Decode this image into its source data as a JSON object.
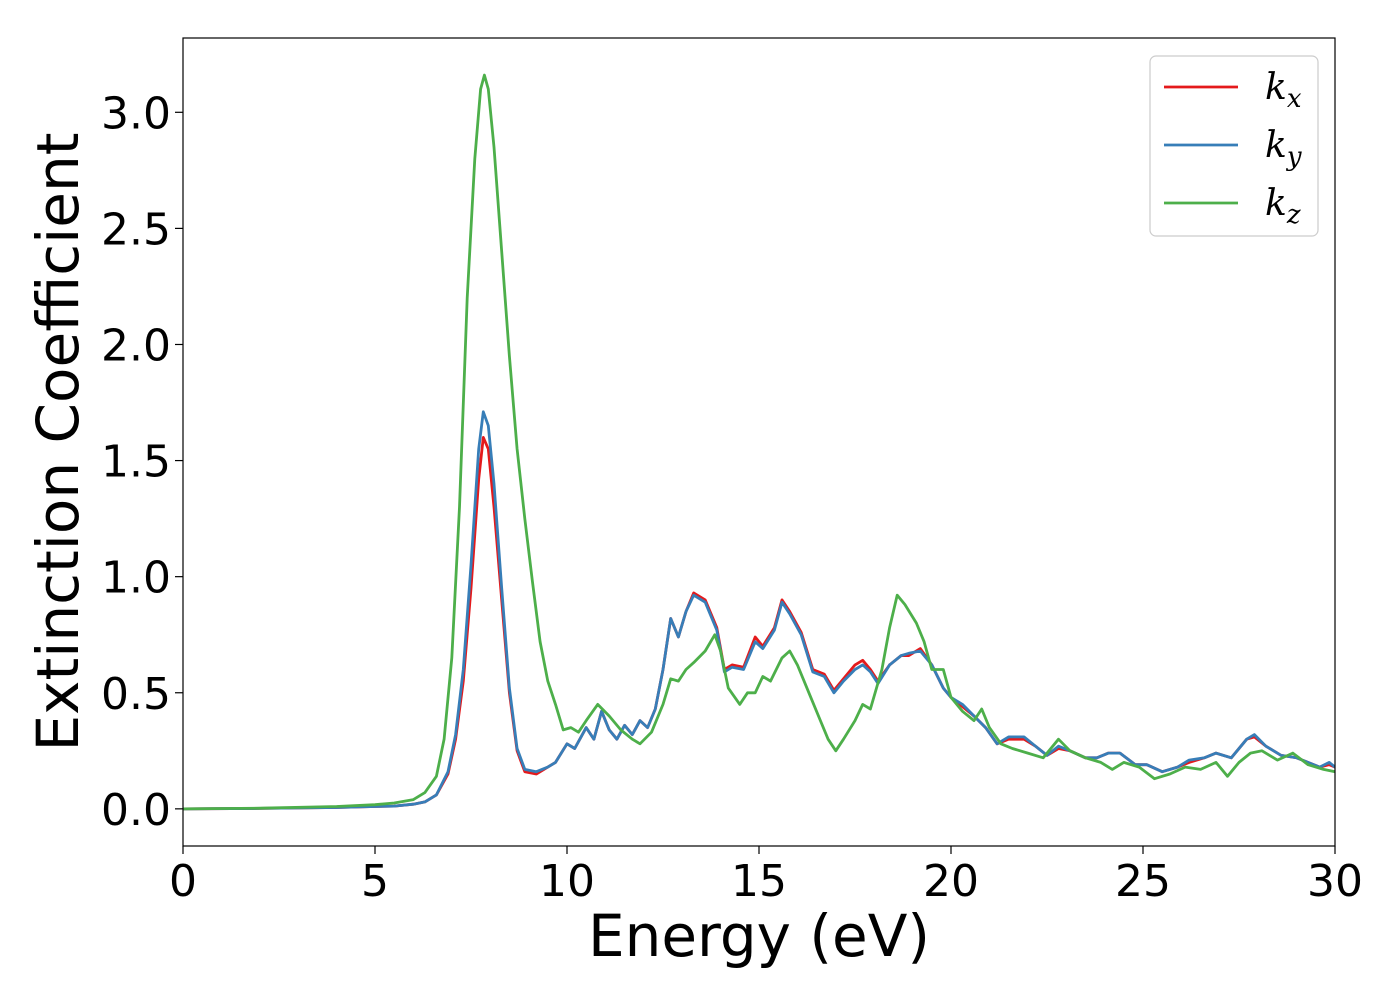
{
  "chart_data": {
    "type": "line",
    "xlabel": "Energy (eV)",
    "ylabel": "Extinction Coefficient",
    "xlim": [
      0,
      30
    ],
    "ylim": [
      -0.16,
      3.32
    ],
    "xticks": [
      0,
      5,
      10,
      15,
      20,
      25,
      30
    ],
    "xtick_labels": [
      "0",
      "5",
      "10",
      "15",
      "20",
      "25",
      "30"
    ],
    "yticks": [
      0.0,
      0.5,
      1.0,
      1.5,
      2.0,
      2.5,
      3.0
    ],
    "ytick_labels": [
      "0.0",
      "0.5",
      "1.0",
      "1.5",
      "2.0",
      "2.5",
      "3.0"
    ],
    "grid": false,
    "legend_position": "top-right",
    "series": [
      {
        "name": "k",
        "subscript": "x",
        "color": "#e41a1c",
        "points": [
          [
            0,
            0.0
          ],
          [
            2,
            0.002
          ],
          [
            4,
            0.006
          ],
          [
            5,
            0.01
          ],
          [
            5.5,
            0.012
          ],
          [
            6,
            0.02
          ],
          [
            6.3,
            0.03
          ],
          [
            6.6,
            0.06
          ],
          [
            6.9,
            0.15
          ],
          [
            7.1,
            0.3
          ],
          [
            7.3,
            0.55
          ],
          [
            7.5,
            0.95
          ],
          [
            7.7,
            1.42
          ],
          [
            7.82,
            1.6
          ],
          [
            7.95,
            1.55
          ],
          [
            8.1,
            1.3
          ],
          [
            8.3,
            0.9
          ],
          [
            8.5,
            0.5
          ],
          [
            8.7,
            0.25
          ],
          [
            8.9,
            0.16
          ],
          [
            9.2,
            0.15
          ],
          [
            9.5,
            0.18
          ],
          [
            9.7,
            0.2
          ],
          [
            10,
            0.28
          ],
          [
            10.2,
            0.26
          ],
          [
            10.5,
            0.35
          ],
          [
            10.7,
            0.3
          ],
          [
            10.9,
            0.42
          ],
          [
            11.1,
            0.34
          ],
          [
            11.3,
            0.3
          ],
          [
            11.5,
            0.36
          ],
          [
            11.7,
            0.32
          ],
          [
            11.9,
            0.38
          ],
          [
            12.1,
            0.35
          ],
          [
            12.3,
            0.43
          ],
          [
            12.5,
            0.6
          ],
          [
            12.7,
            0.82
          ],
          [
            12.9,
            0.74
          ],
          [
            13.1,
            0.85
          ],
          [
            13.3,
            0.93
          ],
          [
            13.6,
            0.9
          ],
          [
            13.9,
            0.78
          ],
          [
            14.1,
            0.6
          ],
          [
            14.3,
            0.62
          ],
          [
            14.6,
            0.61
          ],
          [
            14.9,
            0.74
          ],
          [
            15.1,
            0.7
          ],
          [
            15.4,
            0.78
          ],
          [
            15.6,
            0.9
          ],
          [
            15.8,
            0.85
          ],
          [
            16.1,
            0.76
          ],
          [
            16.4,
            0.6
          ],
          [
            16.7,
            0.58
          ],
          [
            16.95,
            0.51
          ],
          [
            17.2,
            0.56
          ],
          [
            17.5,
            0.62
          ],
          [
            17.7,
            0.64
          ],
          [
            17.9,
            0.6
          ],
          [
            18.1,
            0.55
          ],
          [
            18.4,
            0.62
          ],
          [
            18.7,
            0.66
          ],
          [
            18.9,
            0.66
          ],
          [
            19.2,
            0.69
          ],
          [
            19.5,
            0.62
          ],
          [
            19.8,
            0.52
          ],
          [
            20,
            0.48
          ],
          [
            20.3,
            0.44
          ],
          [
            20.6,
            0.4
          ],
          [
            20.9,
            0.35
          ],
          [
            21.2,
            0.28
          ],
          [
            21.5,
            0.3
          ],
          [
            21.9,
            0.3
          ],
          [
            22.2,
            0.27
          ],
          [
            22.5,
            0.23
          ],
          [
            22.8,
            0.26
          ],
          [
            23.1,
            0.25
          ],
          [
            23.5,
            0.22
          ],
          [
            23.8,
            0.22
          ],
          [
            24.1,
            0.24
          ],
          [
            24.4,
            0.24
          ],
          [
            24.8,
            0.19
          ],
          [
            25.1,
            0.19
          ],
          [
            25.5,
            0.16
          ],
          [
            25.9,
            0.18
          ],
          [
            26.2,
            0.2
          ],
          [
            26.6,
            0.22
          ],
          [
            26.9,
            0.24
          ],
          [
            27.3,
            0.22
          ],
          [
            27.7,
            0.3
          ],
          [
            27.9,
            0.31
          ],
          [
            28.2,
            0.27
          ],
          [
            28.6,
            0.23
          ],
          [
            29,
            0.22
          ],
          [
            29.3,
            0.2
          ],
          [
            29.6,
            0.18
          ],
          [
            29.85,
            0.19
          ],
          [
            30,
            0.18
          ]
        ]
      },
      {
        "name": "k",
        "subscript": "y",
        "color": "#377eb8",
        "points": [
          [
            0,
            0.0
          ],
          [
            2,
            0.002
          ],
          [
            4,
            0.006
          ],
          [
            5,
            0.01
          ],
          [
            5.5,
            0.012
          ],
          [
            6,
            0.02
          ],
          [
            6.3,
            0.03
          ],
          [
            6.6,
            0.06
          ],
          [
            6.9,
            0.16
          ],
          [
            7.1,
            0.32
          ],
          [
            7.3,
            0.6
          ],
          [
            7.5,
            1.05
          ],
          [
            7.7,
            1.55
          ],
          [
            7.82,
            1.71
          ],
          [
            7.95,
            1.65
          ],
          [
            8.1,
            1.4
          ],
          [
            8.3,
            0.95
          ],
          [
            8.5,
            0.52
          ],
          [
            8.7,
            0.26
          ],
          [
            8.9,
            0.17
          ],
          [
            9.2,
            0.16
          ],
          [
            9.5,
            0.18
          ],
          [
            9.7,
            0.2
          ],
          [
            10,
            0.28
          ],
          [
            10.2,
            0.26
          ],
          [
            10.5,
            0.35
          ],
          [
            10.7,
            0.3
          ],
          [
            10.9,
            0.42
          ],
          [
            11.1,
            0.34
          ],
          [
            11.3,
            0.3
          ],
          [
            11.5,
            0.36
          ],
          [
            11.7,
            0.32
          ],
          [
            11.9,
            0.38
          ],
          [
            12.1,
            0.35
          ],
          [
            12.3,
            0.43
          ],
          [
            12.5,
            0.6
          ],
          [
            12.7,
            0.82
          ],
          [
            12.9,
            0.74
          ],
          [
            13.1,
            0.85
          ],
          [
            13.3,
            0.92
          ],
          [
            13.6,
            0.89
          ],
          [
            13.9,
            0.77
          ],
          [
            14.1,
            0.59
          ],
          [
            14.3,
            0.61
          ],
          [
            14.6,
            0.6
          ],
          [
            14.9,
            0.72
          ],
          [
            15.1,
            0.69
          ],
          [
            15.4,
            0.77
          ],
          [
            15.6,
            0.89
          ],
          [
            15.8,
            0.84
          ],
          [
            16.1,
            0.75
          ],
          [
            16.4,
            0.59
          ],
          [
            16.7,
            0.57
          ],
          [
            16.95,
            0.5
          ],
          [
            17.2,
            0.55
          ],
          [
            17.5,
            0.6
          ],
          [
            17.7,
            0.62
          ],
          [
            17.9,
            0.59
          ],
          [
            18.1,
            0.54
          ],
          [
            18.4,
            0.62
          ],
          [
            18.7,
            0.66
          ],
          [
            18.9,
            0.67
          ],
          [
            19.2,
            0.68
          ],
          [
            19.5,
            0.62
          ],
          [
            19.8,
            0.52
          ],
          [
            20,
            0.48
          ],
          [
            20.3,
            0.45
          ],
          [
            20.6,
            0.4
          ],
          [
            20.9,
            0.35
          ],
          [
            21.2,
            0.28
          ],
          [
            21.5,
            0.31
          ],
          [
            21.9,
            0.31
          ],
          [
            22.2,
            0.27
          ],
          [
            22.5,
            0.23
          ],
          [
            22.8,
            0.27
          ],
          [
            23.1,
            0.25
          ],
          [
            23.5,
            0.22
          ],
          [
            23.8,
            0.22
          ],
          [
            24.1,
            0.24
          ],
          [
            24.4,
            0.24
          ],
          [
            24.8,
            0.19
          ],
          [
            25.1,
            0.19
          ],
          [
            25.5,
            0.16
          ],
          [
            25.9,
            0.18
          ],
          [
            26.2,
            0.21
          ],
          [
            26.6,
            0.22
          ],
          [
            26.9,
            0.24
          ],
          [
            27.3,
            0.22
          ],
          [
            27.7,
            0.3
          ],
          [
            27.9,
            0.32
          ],
          [
            28.2,
            0.27
          ],
          [
            28.6,
            0.23
          ],
          [
            29,
            0.22
          ],
          [
            29.3,
            0.2
          ],
          [
            29.6,
            0.18
          ],
          [
            29.85,
            0.2
          ],
          [
            30,
            0.18
          ]
        ]
      },
      {
        "name": "k",
        "subscript": "z",
        "color": "#4daf4a",
        "points": [
          [
            0,
            0.0
          ],
          [
            2,
            0.003
          ],
          [
            4,
            0.01
          ],
          [
            5,
            0.018
          ],
          [
            5.5,
            0.025
          ],
          [
            6,
            0.04
          ],
          [
            6.3,
            0.07
          ],
          [
            6.6,
            0.14
          ],
          [
            6.8,
            0.3
          ],
          [
            7,
            0.65
          ],
          [
            7.2,
            1.3
          ],
          [
            7.4,
            2.2
          ],
          [
            7.6,
            2.8
          ],
          [
            7.75,
            3.1
          ],
          [
            7.85,
            3.16
          ],
          [
            7.95,
            3.1
          ],
          [
            8.1,
            2.85
          ],
          [
            8.3,
            2.4
          ],
          [
            8.5,
            1.95
          ],
          [
            8.7,
            1.55
          ],
          [
            8.9,
            1.25
          ],
          [
            9.1,
            0.98
          ],
          [
            9.3,
            0.72
          ],
          [
            9.5,
            0.55
          ],
          [
            9.7,
            0.45
          ],
          [
            9.9,
            0.34
          ],
          [
            10.1,
            0.35
          ],
          [
            10.3,
            0.33
          ],
          [
            10.5,
            0.38
          ],
          [
            10.8,
            0.45
          ],
          [
            11.1,
            0.4
          ],
          [
            11.4,
            0.34
          ],
          [
            11.7,
            0.3
          ],
          [
            11.9,
            0.28
          ],
          [
            12.2,
            0.33
          ],
          [
            12.5,
            0.45
          ],
          [
            12.7,
            0.56
          ],
          [
            12.9,
            0.55
          ],
          [
            13.1,
            0.6
          ],
          [
            13.3,
            0.63
          ],
          [
            13.6,
            0.68
          ],
          [
            13.85,
            0.75
          ],
          [
            14.0,
            0.68
          ],
          [
            14.2,
            0.52
          ],
          [
            14.5,
            0.45
          ],
          [
            14.7,
            0.5
          ],
          [
            14.9,
            0.5
          ],
          [
            15.1,
            0.57
          ],
          [
            15.3,
            0.55
          ],
          [
            15.6,
            0.65
          ],
          [
            15.8,
            0.68
          ],
          [
            16.0,
            0.62
          ],
          [
            16.3,
            0.5
          ],
          [
            16.6,
            0.38
          ],
          [
            16.8,
            0.3
          ],
          [
            17.0,
            0.25
          ],
          [
            17.2,
            0.3
          ],
          [
            17.5,
            0.38
          ],
          [
            17.7,
            0.45
          ],
          [
            17.9,
            0.43
          ],
          [
            18.2,
            0.6
          ],
          [
            18.4,
            0.78
          ],
          [
            18.6,
            0.92
          ],
          [
            18.8,
            0.88
          ],
          [
            19.1,
            0.8
          ],
          [
            19.3,
            0.72
          ],
          [
            19.5,
            0.6
          ],
          [
            19.8,
            0.6
          ],
          [
            20.0,
            0.48
          ],
          [
            20.3,
            0.42
          ],
          [
            20.6,
            0.38
          ],
          [
            20.8,
            0.43
          ],
          [
            21.0,
            0.35
          ],
          [
            21.3,
            0.28
          ],
          [
            21.6,
            0.26
          ],
          [
            22.0,
            0.24
          ],
          [
            22.4,
            0.22
          ],
          [
            22.8,
            0.3
          ],
          [
            23.1,
            0.25
          ],
          [
            23.5,
            0.22
          ],
          [
            23.9,
            0.2
          ],
          [
            24.2,
            0.17
          ],
          [
            24.5,
            0.2
          ],
          [
            24.9,
            0.18
          ],
          [
            25.3,
            0.13
          ],
          [
            25.7,
            0.15
          ],
          [
            26.1,
            0.18
          ],
          [
            26.5,
            0.17
          ],
          [
            26.9,
            0.2
          ],
          [
            27.2,
            0.14
          ],
          [
            27.5,
            0.2
          ],
          [
            27.8,
            0.24
          ],
          [
            28.1,
            0.25
          ],
          [
            28.5,
            0.21
          ],
          [
            28.9,
            0.24
          ],
          [
            29.3,
            0.19
          ],
          [
            29.7,
            0.17
          ],
          [
            30,
            0.16
          ]
        ]
      }
    ]
  }
}
